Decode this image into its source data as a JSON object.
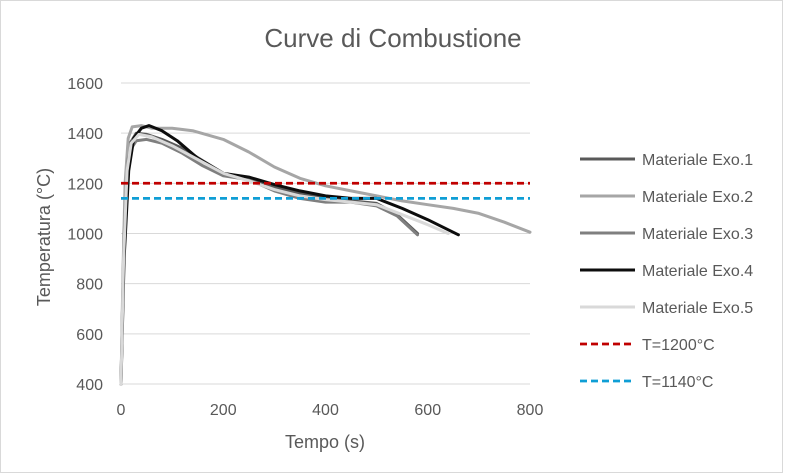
{
  "chart_data": {
    "type": "line",
    "title": "Curve di Combustione",
    "xlabel": "Tempo (s)",
    "ylabel": "Temperatura (°C)",
    "xlim": [
      0,
      800
    ],
    "ylim": [
      400,
      1600
    ],
    "xticks": [
      0,
      200,
      400,
      600,
      800
    ],
    "yticks": [
      400,
      600,
      800,
      1000,
      1200,
      1400,
      1600
    ],
    "grid": "horizontal",
    "legend_position": "right",
    "series": [
      {
        "name": "Materiale Exo.1",
        "color": "#595959",
        "dash": "solid",
        "points": [
          [
            0,
            400
          ],
          [
            4,
            800
          ],
          [
            10,
            1200
          ],
          [
            18,
            1360
          ],
          [
            30,
            1400
          ],
          [
            50,
            1395
          ],
          [
            80,
            1375
          ],
          [
            120,
            1340
          ],
          [
            160,
            1290
          ],
          [
            200,
            1240
          ],
          [
            250,
            1220
          ],
          [
            300,
            1185
          ],
          [
            350,
            1160
          ],
          [
            400,
            1140
          ],
          [
            450,
            1130
          ],
          [
            500,
            1120
          ],
          [
            540,
            1075
          ],
          [
            580,
            1000
          ]
        ]
      },
      {
        "name": "Materiale Exo.2",
        "color": "#a6a6a6",
        "dash": "solid",
        "points": [
          [
            0,
            400
          ],
          [
            4,
            850
          ],
          [
            8,
            1200
          ],
          [
            14,
            1380
          ],
          [
            22,
            1425
          ],
          [
            40,
            1430
          ],
          [
            60,
            1420
          ],
          [
            100,
            1420
          ],
          [
            140,
            1410
          ],
          [
            200,
            1375
          ],
          [
            250,
            1325
          ],
          [
            300,
            1265
          ],
          [
            350,
            1220
          ],
          [
            400,
            1190
          ],
          [
            450,
            1170
          ],
          [
            500,
            1150
          ],
          [
            550,
            1130
          ],
          [
            600,
            1115
          ],
          [
            650,
            1100
          ],
          [
            700,
            1080
          ],
          [
            750,
            1045
          ],
          [
            800,
            1005
          ]
        ]
      },
      {
        "name": "Materiale Exo.3",
        "color": "#7f7f7f",
        "dash": "solid",
        "points": [
          [
            0,
            400
          ],
          [
            6,
            1000
          ],
          [
            14,
            1300
          ],
          [
            22,
            1345
          ],
          [
            30,
            1370
          ],
          [
            50,
            1375
          ],
          [
            80,
            1360
          ],
          [
            120,
            1320
          ],
          [
            160,
            1270
          ],
          [
            200,
            1230
          ],
          [
            250,
            1215
          ],
          [
            300,
            1170
          ],
          [
            350,
            1140
          ],
          [
            400,
            1125
          ],
          [
            450,
            1125
          ],
          [
            500,
            1110
          ],
          [
            540,
            1070
          ],
          [
            580,
            995
          ]
        ]
      },
      {
        "name": "Materiale Exo.4",
        "color": "#0d0d0d",
        "dash": "solid",
        "points": [
          [
            0,
            400
          ],
          [
            6,
            900
          ],
          [
            15,
            1250
          ],
          [
            25,
            1380
          ],
          [
            40,
            1420
          ],
          [
            55,
            1430
          ],
          [
            80,
            1410
          ],
          [
            110,
            1370
          ],
          [
            150,
            1300
          ],
          [
            200,
            1240
          ],
          [
            250,
            1225
          ],
          [
            300,
            1195
          ],
          [
            350,
            1170
          ],
          [
            400,
            1150
          ],
          [
            450,
            1140
          ],
          [
            500,
            1140
          ],
          [
            550,
            1100
          ],
          [
            600,
            1055
          ],
          [
            660,
            995
          ]
        ]
      },
      {
        "name": "Materiale Exo.5",
        "color": "#d9d9d9",
        "dash": "solid",
        "points": [
          [
            0,
            400
          ],
          [
            5,
            900
          ],
          [
            12,
            1250
          ],
          [
            20,
            1360
          ],
          [
            35,
            1395
          ],
          [
            60,
            1385
          ],
          [
            100,
            1350
          ],
          [
            150,
            1295
          ],
          [
            200,
            1240
          ],
          [
            250,
            1210
          ],
          [
            300,
            1175
          ],
          [
            350,
            1150
          ],
          [
            400,
            1135
          ],
          [
            450,
            1125
          ],
          [
            500,
            1115
          ],
          [
            550,
            1075
          ],
          [
            600,
            1035
          ],
          [
            640,
            1000
          ]
        ]
      },
      {
        "name": "T=1200°C",
        "color": "#c00000",
        "dash": "dashed",
        "points": [
          [
            0,
            1200
          ],
          [
            800,
            1200
          ]
        ]
      },
      {
        "name": "T=1140°C",
        "color": "#0f9ed5",
        "dash": "dashed",
        "points": [
          [
            0,
            1140
          ],
          [
            800,
            1140
          ]
        ]
      }
    ]
  }
}
